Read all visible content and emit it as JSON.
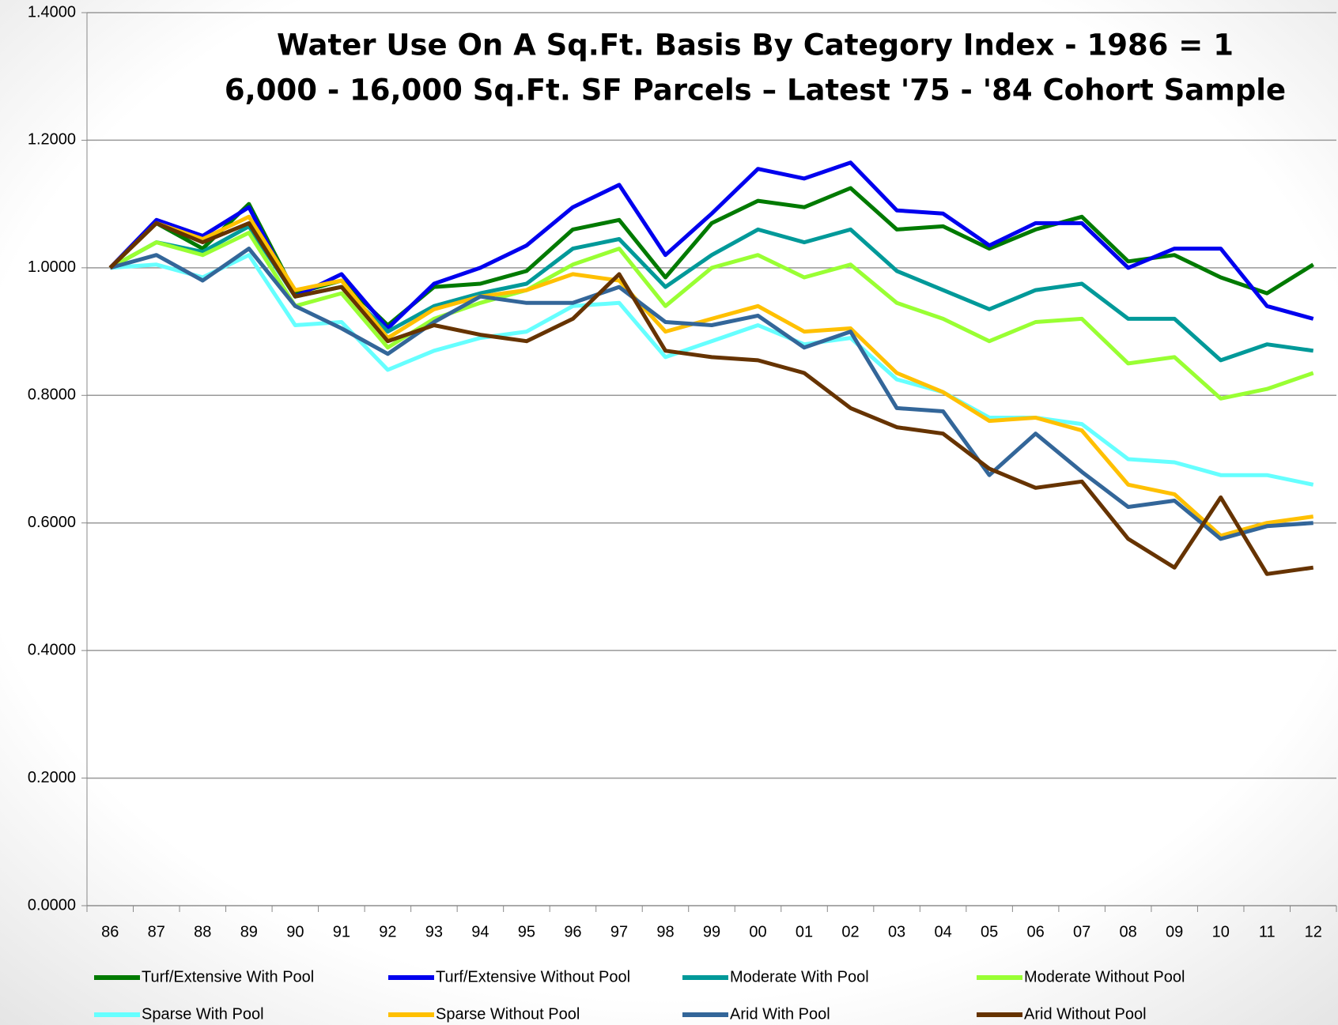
{
  "chart_data": {
    "type": "line",
    "title": [
      "Water Use On A Sq.Ft. Basis By Category Index - 1986 = 1",
      "6,000 - 16,000 Sq.Ft.  SF Parcels – Latest '75 - '84 Cohort Sample"
    ],
    "categories": [
      "86",
      "87",
      "88",
      "89",
      "90",
      "91",
      "92",
      "93",
      "94",
      "95",
      "96",
      "97",
      "98",
      "99",
      "00",
      "01",
      "02",
      "03",
      "04",
      "05",
      "06",
      "07",
      "08",
      "09",
      "10",
      "11",
      "12"
    ],
    "ylim": [
      0,
      1.4
    ],
    "yticks": [
      {
        "value": 0,
        "label": "0.0000"
      },
      {
        "value": 0.2,
        "label": "0.2000"
      },
      {
        "value": 0.4,
        "label": "0.4000"
      },
      {
        "value": 0.6,
        "label": "0.6000"
      },
      {
        "value": 0.8,
        "label": "0.8000"
      },
      {
        "value": 1.0,
        "label": "1.0000"
      },
      {
        "value": 1.2,
        "label": "1.2000"
      },
      {
        "value": 1.4,
        "label": "1.4000"
      }
    ],
    "grid": true,
    "legend": "bottom",
    "series": [
      {
        "name": "Turf/Extensive With Pool",
        "color": "#007a00",
        "values": [
          1.0,
          1.07,
          1.03,
          1.1,
          0.96,
          0.98,
          0.91,
          0.97,
          0.975,
          0.995,
          1.06,
          1.075,
          0.985,
          1.07,
          1.105,
          1.095,
          1.125,
          1.06,
          1.065,
          1.03,
          1.06,
          1.08,
          1.01,
          1.02,
          0.985,
          0.96,
          1.005
        ]
      },
      {
        "name": "Turf/Extensive Without Pool",
        "color": "#0000ee",
        "values": [
          1.0,
          1.075,
          1.05,
          1.095,
          0.955,
          0.99,
          0.905,
          0.975,
          1.0,
          1.035,
          1.095,
          1.13,
          1.02,
          1.085,
          1.155,
          1.14,
          1.165,
          1.09,
          1.085,
          1.035,
          1.07,
          1.07,
          1.0,
          1.03,
          1.03,
          0.94,
          0.92
        ]
      },
      {
        "name": "Moderate With Pool",
        "color": "#009999",
        "values": [
          1.0,
          1.04,
          1.025,
          1.065,
          0.955,
          0.97,
          0.9,
          0.94,
          0.96,
          0.975,
          1.03,
          1.045,
          0.97,
          1.02,
          1.06,
          1.04,
          1.06,
          0.995,
          0.965,
          0.935,
          0.965,
          0.975,
          0.92,
          0.92,
          0.855,
          0.88,
          0.87
        ]
      },
      {
        "name": "Moderate Without Pool",
        "color": "#99ff33",
        "values": [
          1.0,
          1.04,
          1.02,
          1.055,
          0.94,
          0.96,
          0.875,
          0.92,
          0.945,
          0.965,
          1.005,
          1.03,
          0.94,
          1.0,
          1.02,
          0.985,
          1.005,
          0.945,
          0.92,
          0.885,
          0.915,
          0.92,
          0.85,
          0.86,
          0.795,
          0.81,
          0.835
        ]
      },
      {
        "name": "Sparse With Pool",
        "color": "#66ffff",
        "values": [
          1.0,
          1.005,
          0.985,
          1.02,
          0.91,
          0.915,
          0.84,
          0.87,
          0.89,
          0.9,
          0.94,
          0.945,
          0.86,
          0.885,
          0.91,
          0.88,
          0.89,
          0.825,
          0.805,
          0.765,
          0.765,
          0.755,
          0.7,
          0.695,
          0.675,
          0.675,
          0.66
        ]
      },
      {
        "name": "Sparse Without Pool",
        "color": "#ffc000",
        "values": [
          1.0,
          1.07,
          1.045,
          1.08,
          0.965,
          0.98,
          0.89,
          0.935,
          0.955,
          0.965,
          0.99,
          0.98,
          0.9,
          0.92,
          0.94,
          0.9,
          0.905,
          0.835,
          0.805,
          0.76,
          0.765,
          0.745,
          0.66,
          0.645,
          0.58,
          0.6,
          0.61
        ]
      },
      {
        "name": "Arid With Pool",
        "color": "#336699",
        "values": [
          1.0,
          1.02,
          0.98,
          1.03,
          0.94,
          0.905,
          0.865,
          0.915,
          0.955,
          0.945,
          0.945,
          0.97,
          0.915,
          0.91,
          0.925,
          0.875,
          0.9,
          0.78,
          0.775,
          0.675,
          0.74,
          0.68,
          0.625,
          0.635,
          0.575,
          0.595,
          0.6
        ]
      },
      {
        "name": "Arid Without Pool",
        "color": "#663300",
        "values": [
          1.0,
          1.07,
          1.04,
          1.07,
          0.955,
          0.97,
          0.885,
          0.91,
          0.895,
          0.885,
          0.92,
          0.99,
          0.87,
          0.86,
          0.855,
          0.835,
          0.78,
          0.75,
          0.74,
          0.685,
          0.655,
          0.665,
          0.575,
          0.53,
          0.64,
          0.52,
          0.53
        ]
      }
    ]
  }
}
